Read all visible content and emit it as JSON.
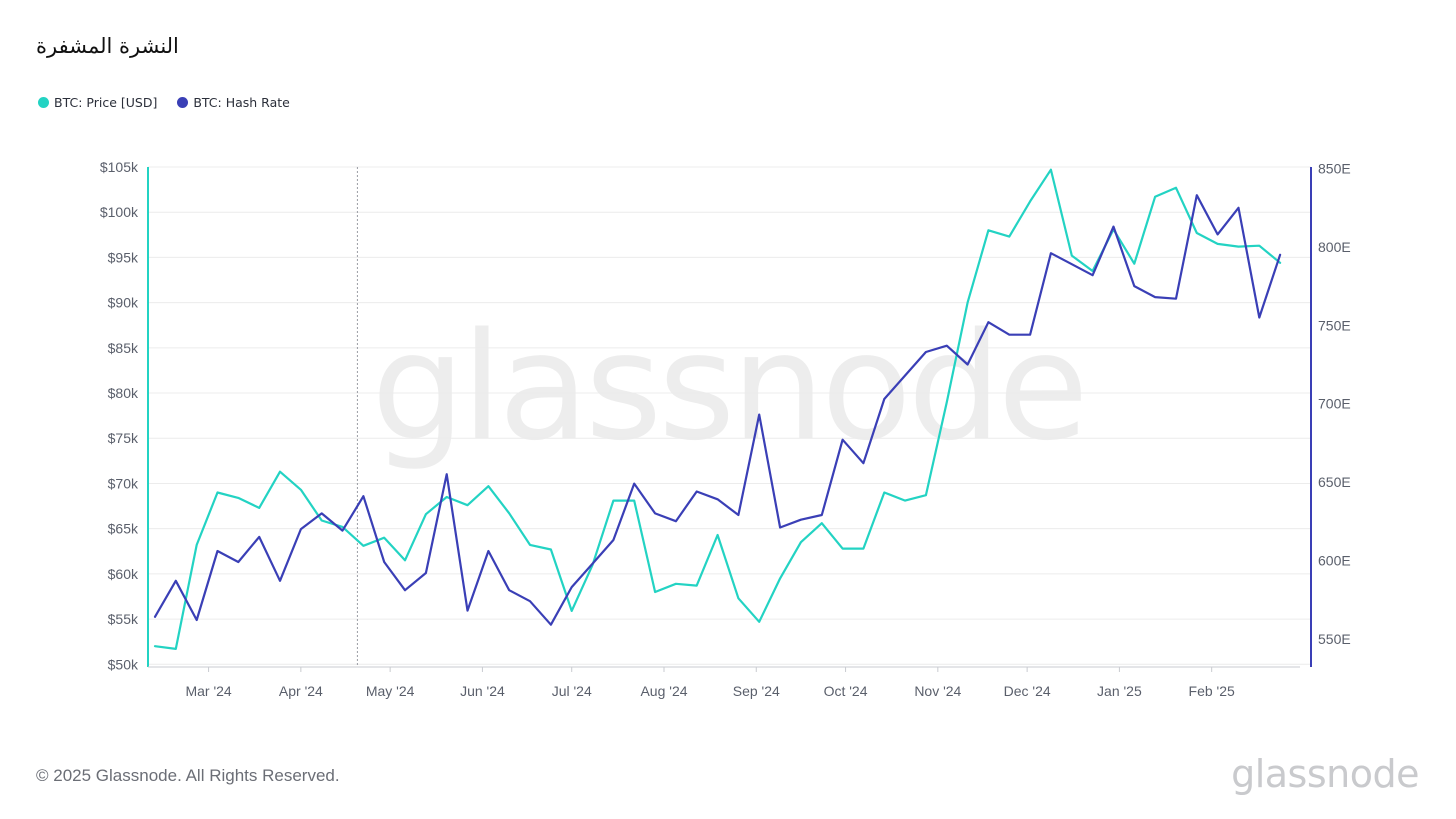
{
  "title": "النشرة المشفرة",
  "colors": {
    "price": "#23d3c3",
    "hash": "#3a3fb6",
    "grid": "#ececec",
    "tick": "#5a5f6b"
  },
  "legend": [
    {
      "label": "BTC: Price [USD]",
      "color": "#23d3c3"
    },
    {
      "label": "BTC: Hash Rate",
      "color": "#3a3fb6"
    }
  ],
  "watermark": "glassnode",
  "footer": {
    "copyright": "© 2025 Glassnode. All Rights Reserved.",
    "brand": "glassnode"
  },
  "chart_data": {
    "type": "line",
    "x_labels": [
      "Mar '24",
      "Apr '24",
      "May '24",
      "Jun '24",
      "Jul '24",
      "Aug '24",
      "Sep '24",
      "Oct '24",
      "Nov '24",
      "Dec '24",
      "Jan '25",
      "Feb '25"
    ],
    "x_label_dates": [
      "2024-03-01",
      "2024-04-01",
      "2024-05-01",
      "2024-06-01",
      "2024-07-01",
      "2024-08-01",
      "2024-09-01",
      "2024-10-01",
      "2024-11-01",
      "2024-12-01",
      "2025-01-01",
      "2025-02-01"
    ],
    "x_range": [
      "2024-02-12",
      "2025-03-02"
    ],
    "left_axis": {
      "ticks": [
        "$50k",
        "$55k",
        "$60k",
        "$65k",
        "$70k",
        "$75k",
        "$80k",
        "$85k",
        "$90k",
        "$95k",
        "$100k",
        "$105k"
      ],
      "range": [
        49700,
        105000
      ]
    },
    "right_axis": {
      "ticks": [
        "550E",
        "600E",
        "650E",
        "700E",
        "750E",
        "800E",
        "850E"
      ],
      "range": [
        532,
        851
      ]
    },
    "vertical_marker": "2024-04-20",
    "series": [
      {
        "name": "BTC: Price [USD]",
        "axis": "left",
        "x": [
          "2024-02-12",
          "2024-02-19",
          "2024-02-26",
          "2024-03-04",
          "2024-03-11",
          "2024-03-18",
          "2024-03-25",
          "2024-04-01",
          "2024-04-08",
          "2024-04-15",
          "2024-04-22",
          "2024-04-29",
          "2024-05-06",
          "2024-05-13",
          "2024-05-20",
          "2024-05-27",
          "2024-06-03",
          "2024-06-10",
          "2024-06-17",
          "2024-06-24",
          "2024-07-01",
          "2024-07-08",
          "2024-07-15",
          "2024-07-22",
          "2024-07-29",
          "2024-08-05",
          "2024-08-12",
          "2024-08-19",
          "2024-08-26",
          "2024-09-02",
          "2024-09-09",
          "2024-09-16",
          "2024-09-23",
          "2024-09-30",
          "2024-10-07",
          "2024-10-14",
          "2024-10-21",
          "2024-10-28",
          "2024-11-04",
          "2024-11-11",
          "2024-11-18",
          "2024-11-25",
          "2024-12-02",
          "2024-12-09",
          "2024-12-16",
          "2024-12-23",
          "2024-12-30",
          "2025-01-06",
          "2025-01-13",
          "2025-01-20",
          "2025-01-27",
          "2025-02-03",
          "2025-02-10",
          "2025-02-17",
          "2025-02-24"
        ],
        "values": [
          52000,
          51700,
          63200,
          69000,
          68400,
          67300,
          71300,
          69300,
          65900,
          65200,
          63100,
          64000,
          61500,
          66600,
          68500,
          67600,
          69700,
          66700,
          63200,
          62700,
          55900,
          61000,
          68100,
          68100,
          58000,
          58900,
          58700,
          64300,
          57300,
          54700,
          59500,
          63500,
          65600,
          62800,
          62800,
          69000,
          68100,
          68700,
          79000,
          90000,
          98000,
          97300,
          101200,
          104700,
          95200,
          93500,
          98100,
          94300,
          101700,
          102700,
          97700,
          96500,
          96200,
          96300,
          94400
        ]
      },
      {
        "name": "BTC: Hash Rate",
        "axis": "right",
        "x": [
          "2024-02-12",
          "2024-02-19",
          "2024-02-26",
          "2024-03-04",
          "2024-03-11",
          "2024-03-18",
          "2024-03-25",
          "2024-04-01",
          "2024-04-08",
          "2024-04-15",
          "2024-04-22",
          "2024-04-29",
          "2024-05-06",
          "2024-05-13",
          "2024-05-20",
          "2024-05-27",
          "2024-06-03",
          "2024-06-10",
          "2024-06-17",
          "2024-06-24",
          "2024-07-01",
          "2024-07-08",
          "2024-07-15",
          "2024-07-22",
          "2024-07-29",
          "2024-08-05",
          "2024-08-12",
          "2024-08-19",
          "2024-08-26",
          "2024-09-02",
          "2024-09-09",
          "2024-09-16",
          "2024-09-23",
          "2024-09-30",
          "2024-10-07",
          "2024-10-14",
          "2024-10-21",
          "2024-10-28",
          "2024-11-04",
          "2024-11-11",
          "2024-11-18",
          "2024-11-25",
          "2024-12-02",
          "2024-12-09",
          "2024-12-16",
          "2024-12-23",
          "2024-12-30",
          "2025-01-06",
          "2025-01-13",
          "2025-01-20",
          "2025-01-27",
          "2025-02-03",
          "2025-02-10",
          "2025-02-17",
          "2025-02-24"
        ],
        "values": [
          564,
          587,
          562,
          606,
          599,
          615,
          587,
          620,
          630,
          619,
          641,
          599,
          581,
          592,
          655,
          568,
          606,
          581,
          574,
          559,
          583,
          598,
          613,
          649,
          630,
          625,
          644,
          639,
          629,
          693,
          621,
          626,
          629,
          677,
          662,
          703,
          718,
          733,
          737,
          725,
          752,
          744,
          744,
          796,
          789,
          782,
          813,
          775,
          768,
          767,
          833,
          808,
          825,
          755,
          795
        ]
      }
    ]
  }
}
